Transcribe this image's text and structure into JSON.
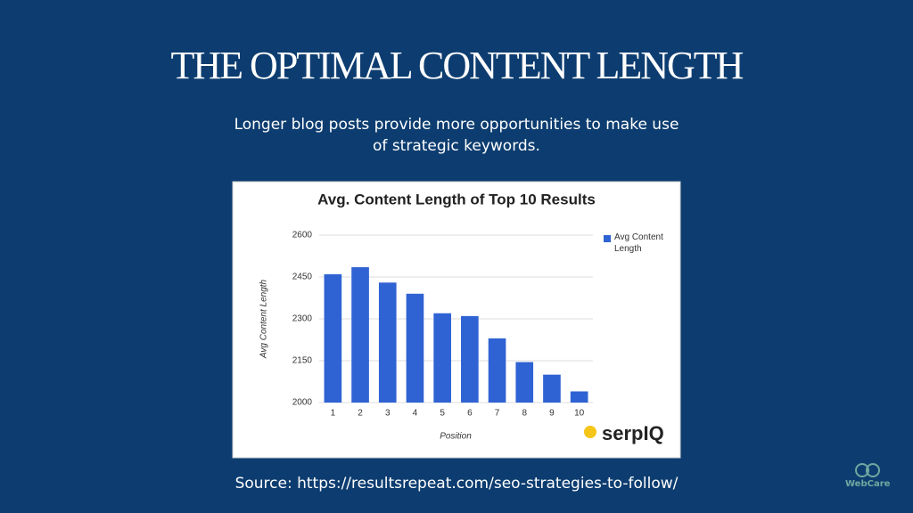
{
  "slide": {
    "title": "THE OPTIMAL CONTENT LENGTH",
    "subtitle": "Longer blog posts provide more opportunities to make use of strategic keywords.",
    "source": "Source: https://resultsrepeat.com/seo-strategies-to-follow/",
    "chart_logo": "serpIQ",
    "brand": "WebCare"
  },
  "chart_data": {
    "type": "bar",
    "title": "Avg. Content Length of Top 10 Results",
    "x_label": "Position",
    "y_label": "Avg Content Length",
    "categories": [
      "1",
      "2",
      "3",
      "4",
      "5",
      "6",
      "7",
      "8",
      "9",
      "10"
    ],
    "series": [
      {
        "name": "Avg Content Length",
        "color": "#2f63d4",
        "values": [
          2460,
          2485,
          2430,
          2390,
          2320,
          2310,
          2230,
          2145,
          2100,
          2040
        ]
      }
    ],
    "ylim": [
      2000,
      2600
    ],
    "yticks": [
      2000,
      2150,
      2300,
      2450,
      2600
    ],
    "grid": true,
    "legend": "right"
  }
}
